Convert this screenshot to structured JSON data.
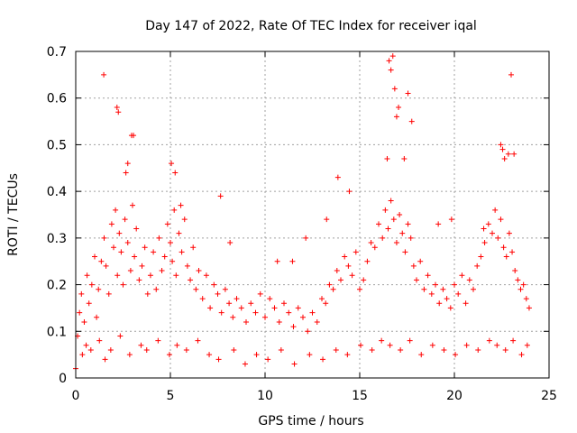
{
  "chart_data": {
    "type": "scatter",
    "title": "Day 147 of 2022, Rate Of TEC Index for receiver iqal",
    "xlabel": "GPS time / hours",
    "ylabel": "ROTI / TECUs",
    "xlim": [
      0,
      25
    ],
    "ylim": [
      0,
      0.7
    ],
    "xticks": [
      0,
      5,
      10,
      15,
      20,
      25
    ],
    "yticks": [
      0,
      0.1,
      0.2,
      0.3,
      0.4,
      0.5,
      0.6,
      0.7
    ],
    "ytick_labels": [
      "0",
      "0.1",
      "0.2",
      "0.3",
      "0.4",
      "0.5",
      "0.6",
      "0.7"
    ],
    "grid": true,
    "marker": "plus",
    "series_color": "#ff0000",
    "series": [
      {
        "x": [
          0.0,
          0.1,
          0.2,
          0.3,
          0.45,
          0.6,
          0.7,
          0.85,
          1.0,
          1.1,
          1.2,
          1.35,
          1.5,
          1.6,
          1.75,
          1.9,
          2.0,
          2.1,
          2.2,
          2.3,
          2.4,
          2.5,
          2.6,
          2.75,
          2.9,
          3.0,
          3.1,
          3.2,
          3.35,
          3.5,
          3.65,
          3.8,
          3.95,
          4.1,
          4.25,
          4.4,
          4.55,
          4.7,
          4.85,
          5.0,
          5.1,
          5.2,
          5.3,
          5.45,
          5.6,
          5.75,
          5.9,
          6.05,
          6.2,
          6.35,
          6.5,
          6.7,
          6.9,
          7.1,
          7.3,
          7.5,
          7.7,
          7.9,
          8.1,
          8.3,
          8.5,
          8.75,
          9.0,
          9.25,
          9.5,
          9.75,
          10.0,
          10.25,
          10.5,
          10.75,
          11.0,
          11.25,
          11.5,
          11.75,
          12.0,
          12.25,
          12.5,
          12.75,
          13.0,
          13.2,
          13.4,
          13.6,
          13.8,
          14.0,
          14.2,
          14.4,
          14.6,
          14.8,
          15.0,
          15.2,
          15.4,
          15.6,
          15.8,
          16.0,
          16.2,
          16.35,
          16.5,
          16.65,
          16.8,
          16.95,
          17.1,
          17.25,
          17.4,
          17.55,
          17.7,
          17.85,
          18.0,
          18.2,
          18.4,
          18.6,
          18.8,
          19.0,
          19.2,
          19.4,
          19.6,
          19.8,
          20.0,
          20.2,
          20.4,
          20.6,
          20.8,
          21.0,
          21.2,
          21.4,
          21.6,
          21.8,
          22.0,
          22.15,
          22.3,
          22.45,
          22.6,
          22.75,
          22.9,
          23.05,
          23.2,
          23.35,
          23.5,
          23.65,
          23.8,
          23.95,
          1.48,
          2.18,
          2.25,
          2.95,
          3.05,
          2.65,
          2.75,
          5.05,
          5.25,
          5.55,
          7.65,
          8.15,
          10.65,
          11.45,
          12.15,
          13.25,
          13.85,
          14.45,
          16.45,
          16.55,
          16.65,
          16.75,
          16.85,
          16.95,
          17.05,
          17.35,
          17.55,
          17.75,
          19.15,
          19.85,
          21.55,
          22.45,
          22.55,
          22.65,
          22.85,
          23.0,
          23.15,
          0.35,
          0.55,
          0.8,
          1.25,
          1.55,
          1.85,
          2.35,
          2.85,
          3.45,
          3.75,
          4.35,
          4.95,
          5.35,
          5.85,
          6.45,
          7.05,
          7.55,
          8.35,
          8.95,
          9.55,
          10.15,
          10.85,
          11.55,
          12.35,
          13.05,
          13.75,
          14.35,
          15.05,
          15.65,
          16.15,
          16.6,
          17.15,
          17.65,
          18.25,
          18.85,
          19.45,
          20.05,
          20.65,
          21.25,
          21.85,
          22.25,
          22.7,
          23.1,
          23.55,
          23.85
        ],
        "y": [
          0.02,
          0.09,
          0.14,
          0.18,
          0.12,
          0.22,
          0.16,
          0.2,
          0.26,
          0.13,
          0.19,
          0.25,
          0.3,
          0.24,
          0.18,
          0.33,
          0.28,
          0.36,
          0.22,
          0.31,
          0.27,
          0.2,
          0.34,
          0.29,
          0.23,
          0.37,
          0.26,
          0.32,
          0.21,
          0.24,
          0.28,
          0.18,
          0.22,
          0.27,
          0.19,
          0.3,
          0.23,
          0.26,
          0.33,
          0.29,
          0.25,
          0.36,
          0.22,
          0.31,
          0.27,
          0.34,
          0.24,
          0.21,
          0.28,
          0.19,
          0.23,
          0.17,
          0.22,
          0.15,
          0.2,
          0.18,
          0.14,
          0.19,
          0.16,
          0.13,
          0.17,
          0.15,
          0.12,
          0.16,
          0.14,
          0.18,
          0.13,
          0.17,
          0.15,
          0.12,
          0.16,
          0.14,
          0.11,
          0.15,
          0.13,
          0.1,
          0.14,
          0.12,
          0.17,
          0.16,
          0.2,
          0.19,
          0.23,
          0.21,
          0.26,
          0.24,
          0.22,
          0.27,
          0.19,
          0.21,
          0.25,
          0.29,
          0.28,
          0.33,
          0.3,
          0.36,
          0.32,
          0.38,
          0.34,
          0.29,
          0.35,
          0.31,
          0.27,
          0.33,
          0.3,
          0.24,
          0.21,
          0.25,
          0.19,
          0.22,
          0.18,
          0.2,
          0.16,
          0.19,
          0.17,
          0.15,
          0.2,
          0.18,
          0.22,
          0.16,
          0.21,
          0.19,
          0.24,
          0.26,
          0.29,
          0.33,
          0.31,
          0.36,
          0.3,
          0.34,
          0.28,
          0.26,
          0.31,
          0.27,
          0.23,
          0.21,
          0.19,
          0.2,
          0.17,
          0.15,
          0.65,
          0.58,
          0.57,
          0.52,
          0.52,
          0.44,
          0.46,
          0.46,
          0.44,
          0.37,
          0.39,
          0.29,
          0.25,
          0.25,
          0.3,
          0.34,
          0.43,
          0.4,
          0.47,
          0.68,
          0.66,
          0.69,
          0.62,
          0.56,
          0.58,
          0.47,
          0.61,
          0.55,
          0.33,
          0.34,
          0.32,
          0.5,
          0.49,
          0.47,
          0.48,
          0.65,
          0.48,
          0.05,
          0.07,
          0.06,
          0.08,
          0.04,
          0.06,
          0.09,
          0.05,
          0.07,
          0.06,
          0.08,
          0.05,
          0.07,
          0.06,
          0.08,
          0.05,
          0.04,
          0.06,
          0.03,
          0.05,
          0.04,
          0.06,
          0.03,
          0.05,
          0.04,
          0.06,
          0.05,
          0.07,
          0.06,
          0.08,
          0.07,
          0.06,
          0.08,
          0.05,
          0.07,
          0.06,
          0.05,
          0.07,
          0.06,
          0.08,
          0.07,
          0.06,
          0.08,
          0.05,
          0.07
        ]
      }
    ]
  }
}
